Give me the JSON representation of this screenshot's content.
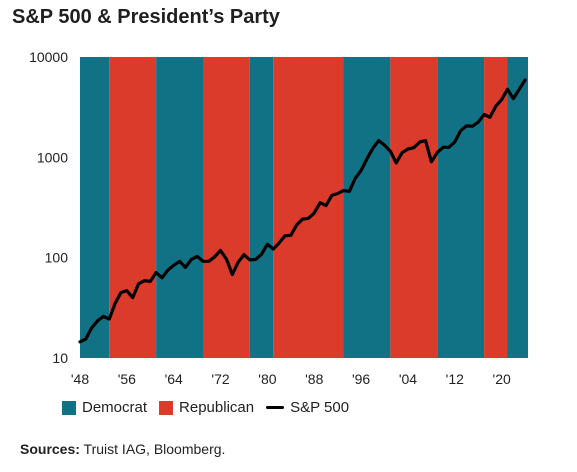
{
  "title": "S&P 500 & President’s Party",
  "source": {
    "label": "Sources:",
    "text": " Truist IAG, Bloomberg."
  },
  "colors": {
    "democrat": "#117285",
    "republican": "#db3b2a",
    "line": "#000000"
  },
  "legend": [
    {
      "label": "Democrat",
      "kind": "swatch",
      "color": "#117285"
    },
    {
      "label": "Republican",
      "kind": "swatch",
      "color": "#db3b2a"
    },
    {
      "label": "S&P 500",
      "kind": "line",
      "color": "#000000"
    }
  ],
  "chart_data": {
    "type": "line",
    "title": "S&P 500 & President’s Party",
    "xlabel": "",
    "ylabel": "",
    "x_range": [
      1948,
      2024.5
    ],
    "ylim": [
      10,
      10000
    ],
    "y_scale": "log",
    "y_ticks": [
      10,
      100,
      1000,
      10000
    ],
    "y_tick_labels": [
      "10",
      "100",
      "1000",
      "10000"
    ],
    "x_ticks": [
      1948,
      1956,
      1964,
      1972,
      1980,
      1988,
      1996,
      2004,
      2012,
      2020
    ],
    "x_tick_labels": [
      "'48",
      "'56",
      "'64",
      "'72",
      "'80",
      "'88",
      "'96",
      "'04",
      "'12",
      "'20"
    ],
    "grid": false,
    "legend_position": "bottom",
    "bands": [
      {
        "start": 1948,
        "end": 1953,
        "party": "Democrat"
      },
      {
        "start": 1953,
        "end": 1961,
        "party": "Republican"
      },
      {
        "start": 1961,
        "end": 1969,
        "party": "Democrat"
      },
      {
        "start": 1969,
        "end": 1977,
        "party": "Republican"
      },
      {
        "start": 1977,
        "end": 1981,
        "party": "Democrat"
      },
      {
        "start": 1981,
        "end": 1993,
        "party": "Republican"
      },
      {
        "start": 1993,
        "end": 2001,
        "party": "Democrat"
      },
      {
        "start": 2001,
        "end": 2009,
        "party": "Republican"
      },
      {
        "start": 2009,
        "end": 2017,
        "party": "Democrat"
      },
      {
        "start": 2017,
        "end": 2021,
        "party": "Republican"
      },
      {
        "start": 2021,
        "end": 2024.5,
        "party": "Democrat"
      }
    ],
    "series": [
      {
        "name": "S&P 500",
        "x": [
          1948,
          1949,
          1950,
          1951,
          1952,
          1953,
          1954,
          1955,
          1956,
          1957,
          1958,
          1959,
          1960,
          1961,
          1962,
          1963,
          1964,
          1965,
          1966,
          1967,
          1968,
          1969,
          1970,
          1971,
          1972,
          1973,
          1974,
          1975,
          1976,
          1977,
          1978,
          1979,
          1980,
          1981,
          1982,
          1983,
          1984,
          1985,
          1986,
          1987,
          1988,
          1989,
          1990,
          1991,
          1992,
          1993,
          1994,
          1995,
          1996,
          1997,
          1998,
          1999,
          2000,
          2001,
          2002,
          2003,
          2004,
          2005,
          2006,
          2007,
          2008,
          2009,
          2010,
          2011,
          2012,
          2013,
          2014,
          2015,
          2016,
          2017,
          2018,
          2019,
          2020,
          2021,
          2022,
          2023,
          2024
        ],
        "values": [
          14.5,
          15.5,
          20,
          23.5,
          26,
          24.5,
          35,
          45,
          47,
          40,
          55,
          59,
          58,
          71,
          63,
          75,
          84,
          92,
          80,
          96,
          103,
          92,
          92,
          102,
          118,
          97,
          68,
          90,
          107,
          95,
          96,
          108,
          136,
          122,
          140,
          165,
          167,
          212,
          242,
          247,
          278,
          353,
          330,
          417,
          436,
          466,
          459,
          616,
          740,
          970,
          1229,
          1469,
          1320,
          1148,
          880,
          1112,
          1212,
          1248,
          1418,
          1468,
          903,
          1115,
          1258,
          1258,
          1426,
          1848,
          2059,
          2044,
          2239,
          2674,
          2507,
          3231,
          3756,
          4766,
          3840,
          4770,
          5900
        ]
      }
    ]
  }
}
